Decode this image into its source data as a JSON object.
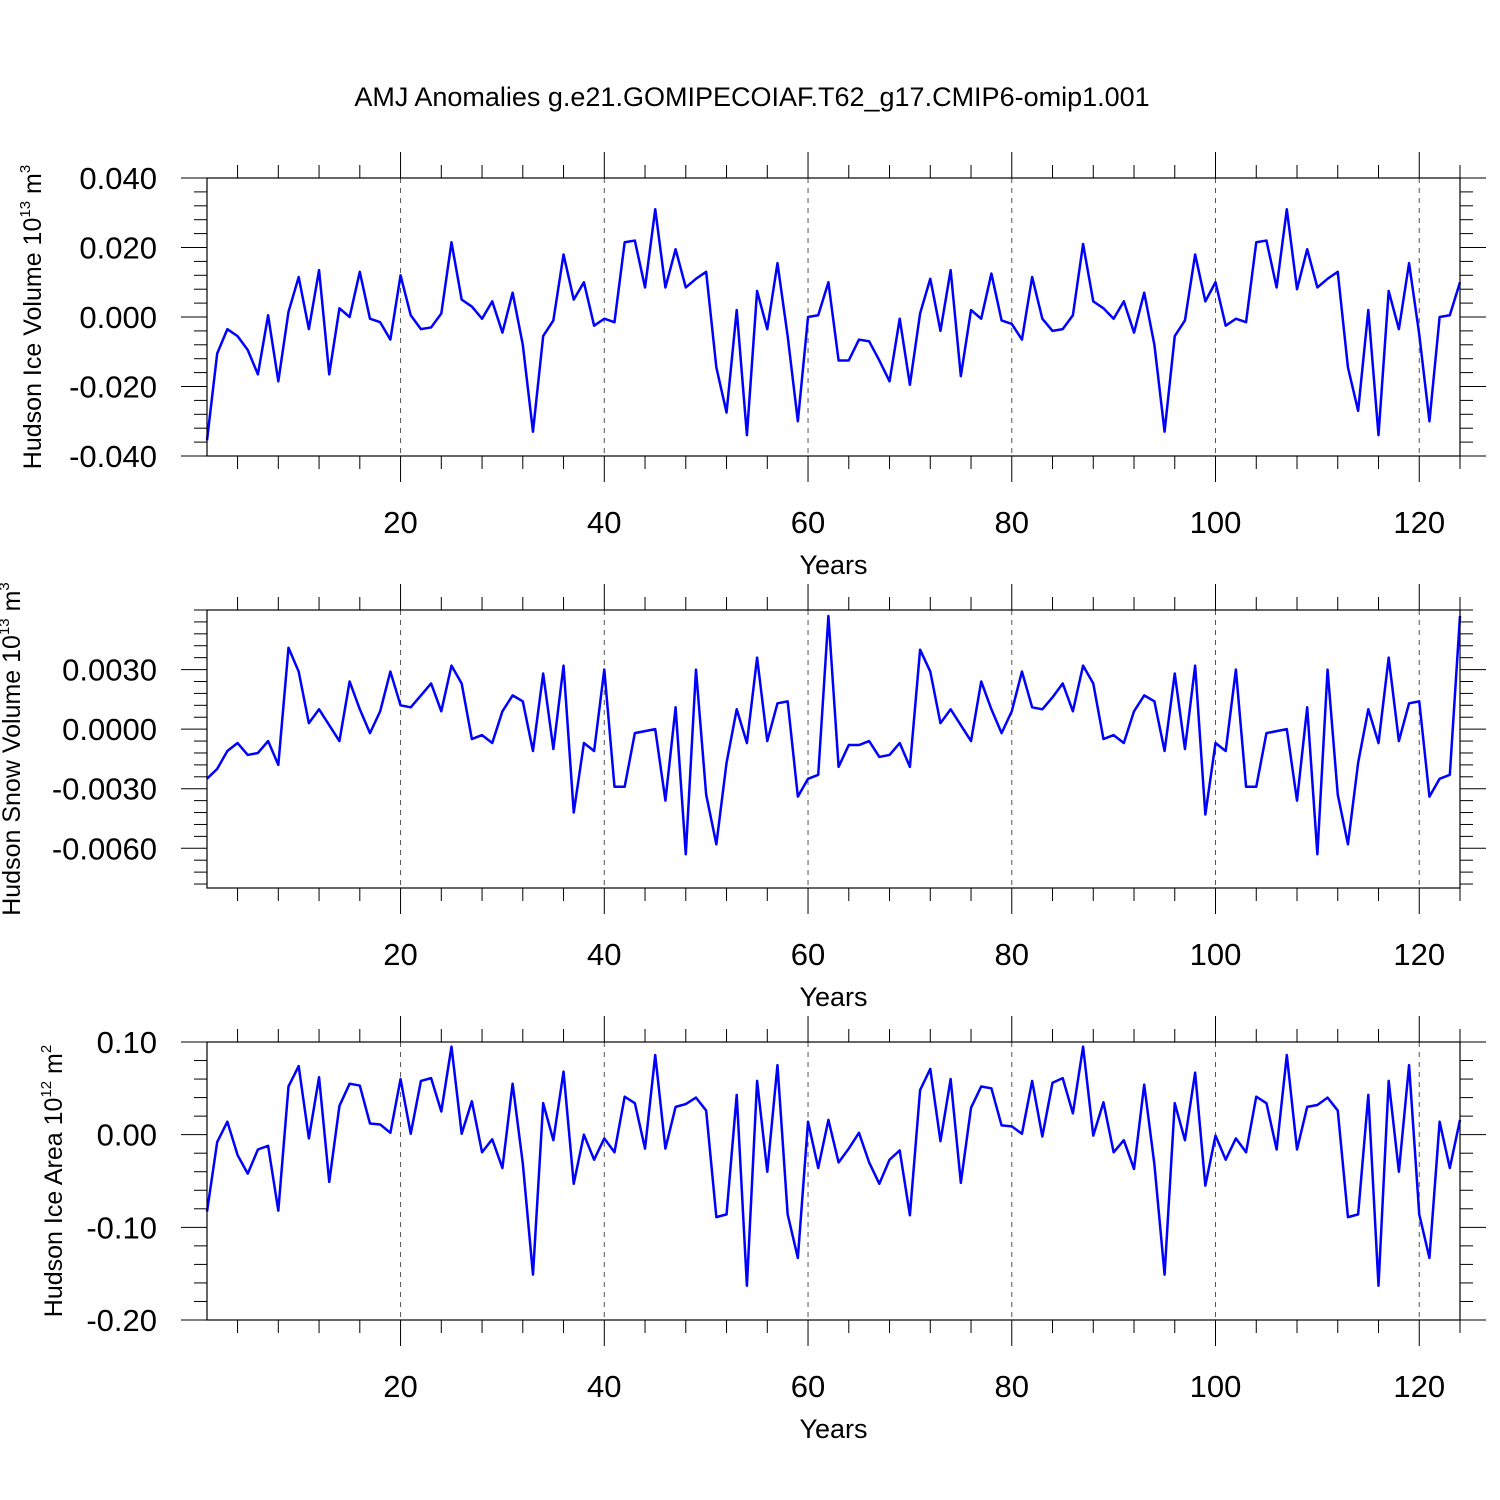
{
  "title": "AMJ Anomalies g.e21.GOMIPECOIAF.T62_g17.CMIP6-omip1.001",
  "chart_data": [
    {
      "type": "line",
      "xlabel": "Years",
      "ylabel_main": "Hudson Ice Volume 10",
      "ylabel_sup1": "13",
      "ylabel_mid": " m",
      "ylabel_sup2": "3",
      "xlim": [
        1,
        124
      ],
      "ylim": [
        -0.04,
        0.04
      ],
      "xticks": [
        20,
        40,
        60,
        80,
        100,
        120
      ],
      "xtick_labels": [
        "20",
        "40",
        "60",
        "80",
        "100",
        "120"
      ],
      "yticks": [
        -0.04,
        -0.02,
        0,
        0.02,
        0.04
      ],
      "ytick_labels": [
        "-0.040",
        "-0.020",
        "0.000",
        "0.020",
        "0.040"
      ],
      "grid": "dashed vertical lines at x ticks",
      "color": "#0000ff",
      "x_start": 1,
      "values": [
        -0.0355,
        -0.0105,
        -0.0035,
        -0.0055,
        -0.0095,
        -0.0165,
        0.0005,
        -0.0185,
        0.0015,
        0.0115,
        -0.0035,
        0.0135,
        -0.0165,
        0.0025,
        0.0,
        0.013,
        -0.0005,
        -0.0015,
        -0.0065,
        0.012,
        0.0005,
        -0.0035,
        -0.003,
        0.001,
        0.0215,
        0.005,
        0.003,
        -0.0005,
        0.0045,
        -0.0045,
        0.007,
        -0.008,
        -0.033,
        -0.0055,
        -0.001,
        0.018,
        0.005,
        0.01,
        -0.0025,
        -0.0005,
        -0.0015,
        0.0215,
        0.022,
        0.0085,
        0.031,
        0.0085,
        0.0195,
        0.0085,
        0.011,
        0.013,
        -0.0145,
        -0.0275,
        0.002,
        -0.034,
        0.0075,
        -0.0035,
        0.0155,
        -0.0055,
        -0.03,
        0.0,
        0.0005,
        0.01,
        -0.0125,
        -0.0125,
        -0.0065,
        -0.007,
        -0.0125,
        -0.0185,
        -0.0005,
        -0.0195,
        0.001,
        0.011,
        -0.004,
        0.0135,
        -0.017,
        0.002,
        -0.0005,
        0.0125,
        -0.001,
        -0.002,
        -0.0065,
        0.0115,
        -0.0005,
        -0.004,
        -0.0035,
        0.0005,
        0.021,
        0.0045,
        0.0025,
        -0.0005,
        0.0045,
        -0.0045,
        0.007,
        -0.008,
        -0.033,
        -0.0055,
        -0.001,
        0.018,
        0.0045,
        0.01,
        -0.0025,
        -0.0005,
        -0.0015,
        0.0215,
        0.022,
        0.0085,
        0.031,
        0.008,
        0.0195,
        0.0085,
        0.011,
        0.013,
        -0.0145,
        -0.027,
        0.002,
        -0.034,
        0.0075,
        -0.0035,
        0.0155,
        -0.005,
        -0.03,
        0.0,
        0.0005,
        0.01
      ]
    },
    {
      "type": "line",
      "xlabel": "Years",
      "ylabel_main": "Hudson Snow Volume 10",
      "ylabel_sup1": "13",
      "ylabel_mid": " m",
      "ylabel_sup2": "3",
      "xlim": [
        1,
        124
      ],
      "ylim": [
        -0.008,
        0.006
      ],
      "xticks": [
        20,
        40,
        60,
        80,
        100,
        120
      ],
      "xtick_labels": [
        "20",
        "40",
        "60",
        "80",
        "100",
        "120"
      ],
      "yticks": [
        -0.006,
        -0.003,
        0,
        0.003
      ],
      "ytick_labels": [
        "-0.0060",
        "-0.0030",
        "0.0000",
        "0.0030"
      ],
      "grid": "dashed vertical lines at x ticks",
      "color": "#0000ff",
      "x_start": 1,
      "values": [
        -0.0025,
        -0.002,
        -0.0011,
        -0.0007,
        -0.0013,
        -0.0012,
        -0.0006,
        -0.0018,
        0.0041,
        0.0029,
        0.0003,
        0.001,
        0.0002,
        -0.0006,
        0.0024,
        0.001,
        -0.0002,
        0.0009,
        0.0029,
        0.0012,
        0.0011,
        0.0017,
        0.0023,
        0.0009,
        0.0032,
        0.0023,
        -0.0005,
        -0.0003,
        -0.0007,
        0.0009,
        0.0017,
        0.0014,
        -0.0011,
        0.0028,
        -0.001,
        0.0032,
        -0.0042,
        -0.0007,
        -0.0011,
        0.003,
        -0.0029,
        -0.0029,
        -0.0002,
        -0.0001,
        0.0,
        -0.0036,
        0.0011,
        -0.0063,
        0.003,
        -0.0033,
        -0.0058,
        -0.0017,
        0.001,
        -0.0007,
        0.0036,
        -0.0006,
        0.0013,
        0.0014,
        -0.0034,
        -0.0025,
        -0.0023,
        0.0057,
        -0.0019,
        -0.0008,
        -0.0008,
        -0.0006,
        -0.0014,
        -0.0013,
        -0.0007,
        -0.0019,
        0.004,
        0.0029,
        0.0003,
        0.001,
        0.0002,
        -0.0006,
        0.0024,
        0.001,
        -0.0002,
        0.0009,
        0.0029,
        0.0011,
        0.001,
        0.0016,
        0.0023,
        0.0009,
        0.0032,
        0.0023,
        -0.0005,
        -0.0003,
        -0.0007,
        0.0009,
        0.0017,
        0.0014,
        -0.0011,
        0.0028,
        -0.001,
        0.0032,
        -0.0043,
        -0.0007,
        -0.0011,
        0.003,
        -0.0029,
        -0.0029,
        -0.0002,
        -0.0001,
        0.0,
        -0.0036,
        0.0011,
        -0.0063,
        0.003,
        -0.0033,
        -0.0058,
        -0.0017,
        0.001,
        -0.0007,
        0.0036,
        -0.0006,
        0.0013,
        0.0014,
        -0.0034,
        -0.0025,
        -0.0023,
        0.0057
      ]
    },
    {
      "type": "line",
      "xlabel": "Years",
      "ylabel_main": "Hudson Ice Area 10",
      "ylabel_sup1": "12",
      "ylabel_mid": " m",
      "ylabel_sup2": "2",
      "xlim": [
        1,
        124
      ],
      "ylim": [
        -0.2,
        0.1
      ],
      "xticks": [
        20,
        40,
        60,
        80,
        100,
        120
      ],
      "xtick_labels": [
        "20",
        "40",
        "60",
        "80",
        "100",
        "120"
      ],
      "yticks": [
        -0.2,
        -0.1,
        0,
        0.1
      ],
      "ytick_labels": [
        "-0.20",
        "-0.10",
        "0.00",
        "0.10"
      ],
      "grid": "dashed vertical lines at x ticks",
      "color": "#0000ff",
      "x_start": 1,
      "values": [
        -0.083,
        -0.008,
        0.014,
        -0.022,
        -0.042,
        -0.016,
        -0.012,
        -0.082,
        0.052,
        0.074,
        -0.004,
        0.062,
        -0.051,
        0.031,
        0.055,
        0.053,
        0.012,
        0.011,
        0.002,
        0.06,
        0.001,
        0.058,
        0.061,
        0.025,
        0.095,
        0.001,
        0.036,
        -0.019,
        -0.005,
        -0.036,
        0.055,
        -0.031,
        -0.151,
        0.034,
        -0.006,
        0.068,
        -0.053,
        0.0,
        -0.027,
        -0.004,
        -0.019,
        0.041,
        0.034,
        -0.015,
        0.086,
        -0.015,
        0.03,
        0.033,
        0.04,
        0.026,
        -0.089,
        -0.086,
        0.043,
        -0.163,
        0.058,
        -0.04,
        0.075,
        -0.086,
        -0.133,
        0.014,
        -0.036,
        0.016,
        -0.03,
        -0.015,
        0.002,
        -0.03,
        -0.053,
        -0.027,
        -0.017,
        -0.087,
        0.048,
        0.071,
        -0.007,
        0.06,
        -0.052,
        0.029,
        0.052,
        0.05,
        0.01,
        0.009,
        0.001,
        0.058,
        -0.002,
        0.056,
        0.061,
        0.023,
        0.095,
        -0.001,
        0.035,
        -0.019,
        -0.006,
        -0.037,
        0.054,
        -0.032,
        -0.151,
        0.034,
        -0.006,
        0.067,
        -0.055,
        -0.001,
        -0.027,
        -0.004,
        -0.019,
        0.041,
        0.034,
        -0.016,
        0.086,
        -0.016,
        0.03,
        0.032,
        0.04,
        0.026,
        -0.089,
        -0.086,
        0.043,
        -0.163,
        0.058,
        -0.04,
        0.075,
        -0.086,
        -0.133,
        0.014,
        -0.036,
        0.016
      ]
    }
  ]
}
